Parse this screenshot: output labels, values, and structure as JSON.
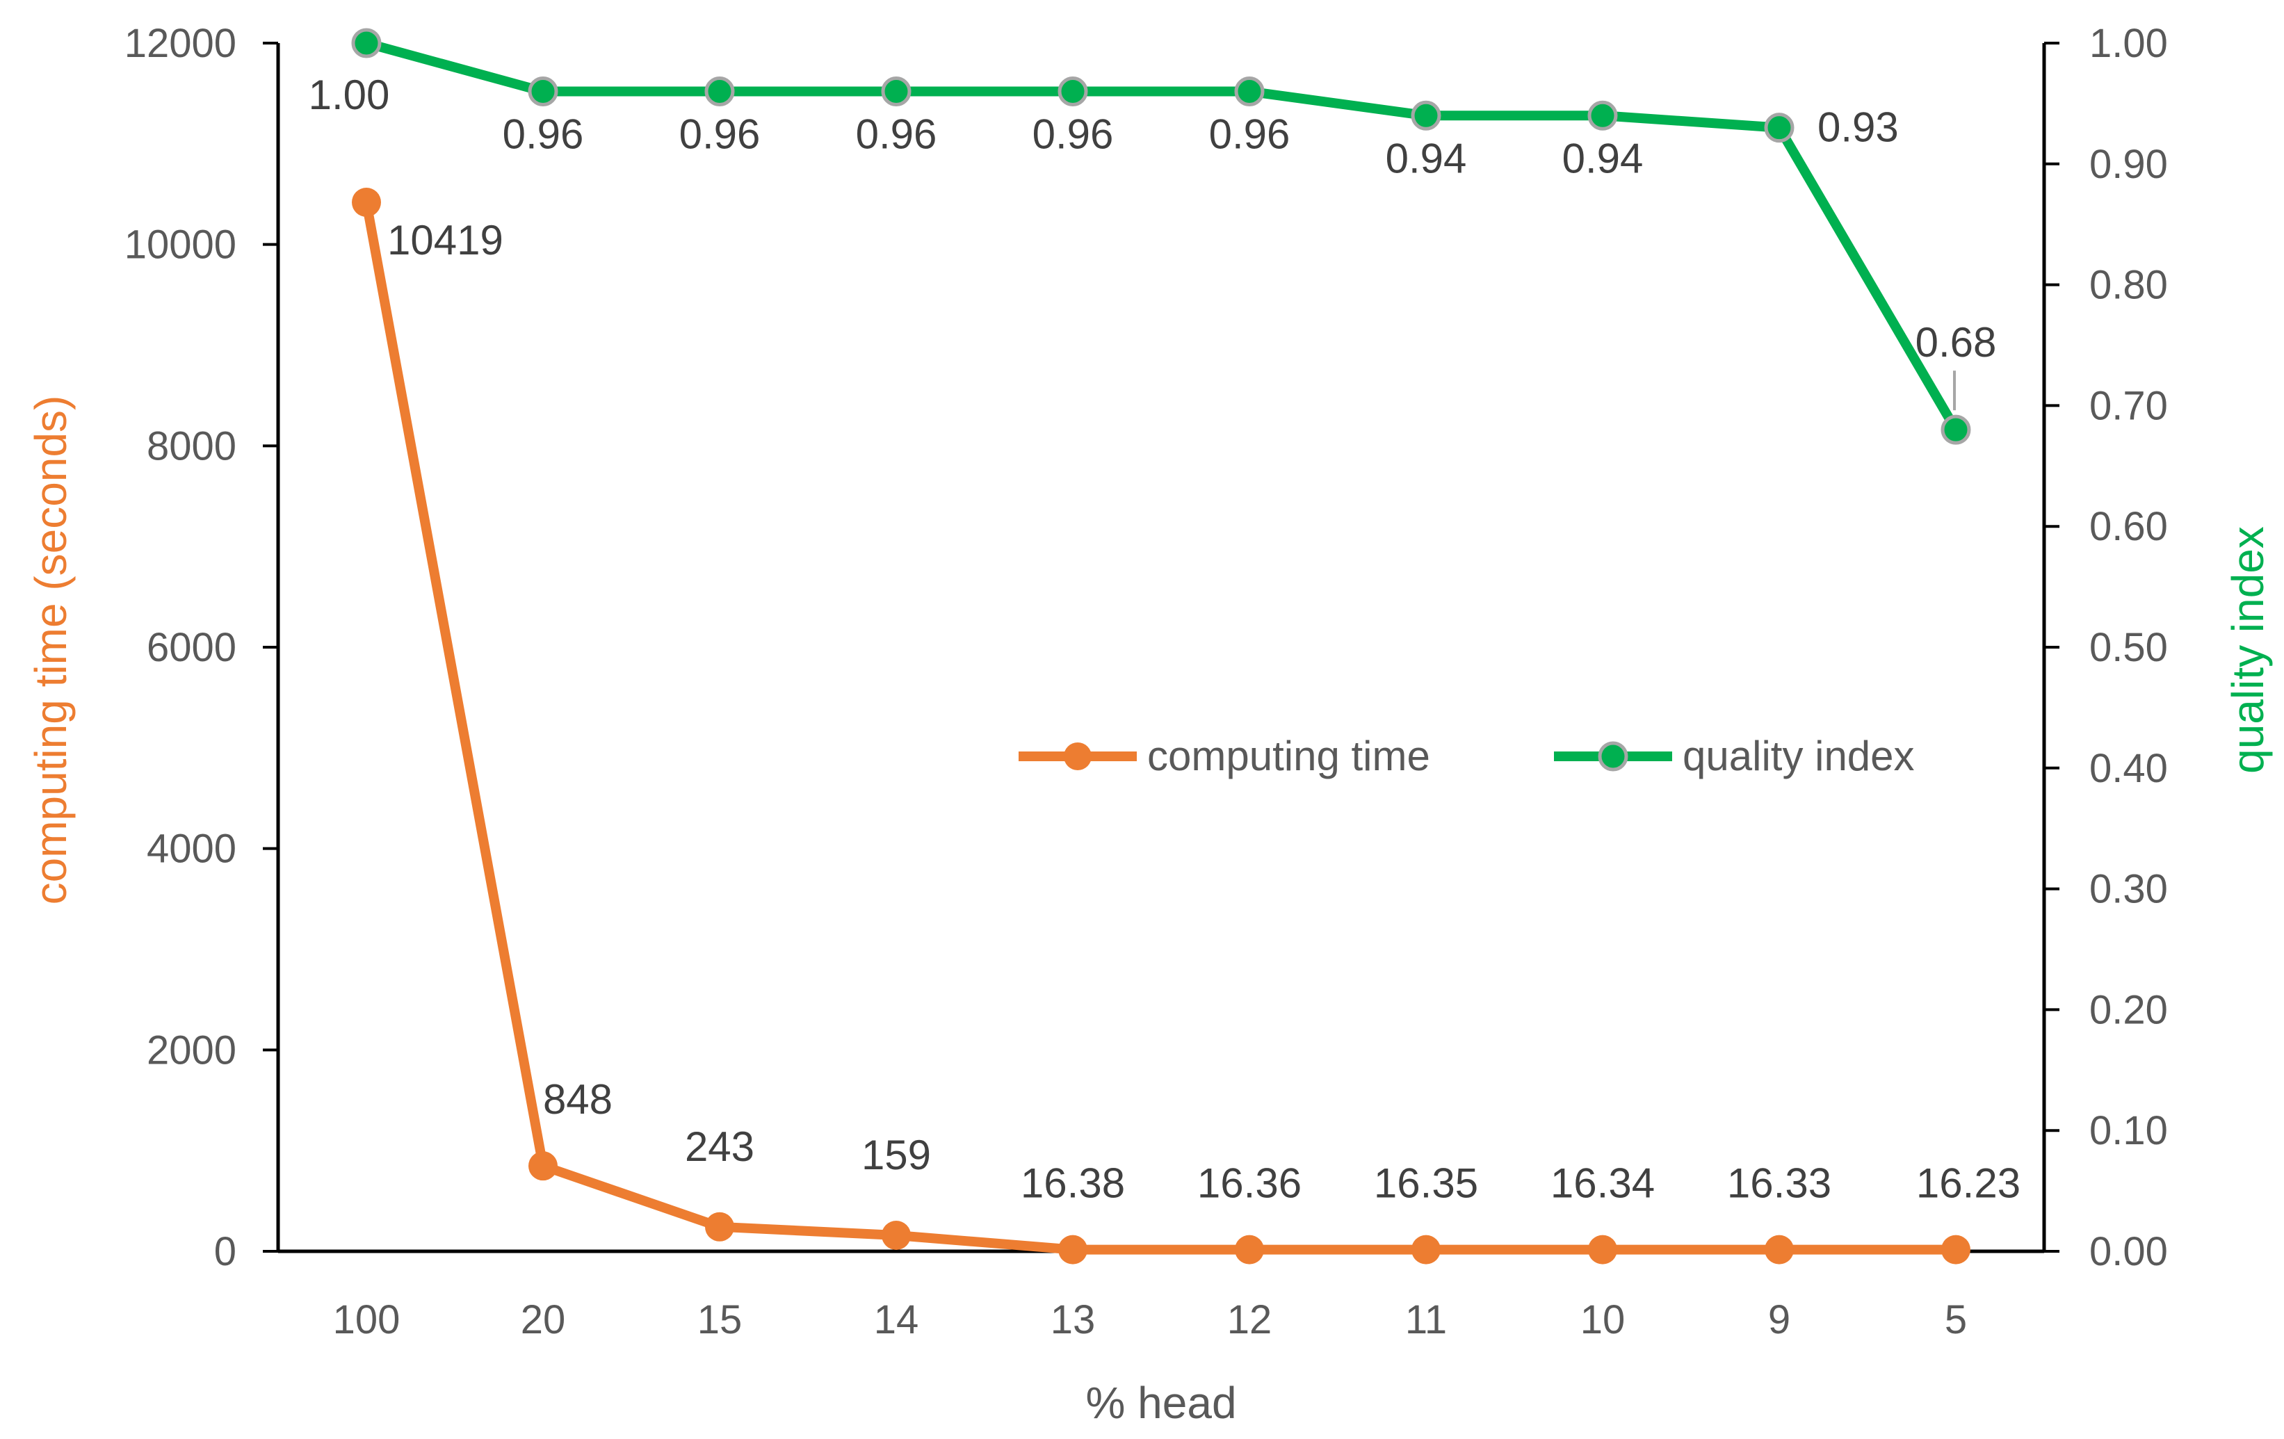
{
  "chart_data": {
    "type": "line",
    "categories": [
      "100",
      "20",
      "15",
      "14",
      "13",
      "12",
      "11",
      "10",
      "9",
      "5"
    ],
    "xlabel": "% head",
    "y_left": {
      "label": "computing time (seconds)",
      "ylim": [
        0,
        12000
      ],
      "ticks": [
        "0",
        "2000",
        "4000",
        "6000",
        "8000",
        "10000",
        "12000"
      ]
    },
    "y_right": {
      "label": "quality index",
      "ylim": [
        0,
        1
      ],
      "ticks": [
        "0.00",
        "0.10",
        "0.20",
        "0.30",
        "0.40",
        "0.50",
        "0.60",
        "0.70",
        "0.80",
        "0.90",
        "1.00"
      ]
    },
    "series": [
      {
        "name": "computing time",
        "axis": "left",
        "color": "#ED7D31",
        "values": [
          10419,
          848,
          243,
          159,
          16.38,
          16.36,
          16.35,
          16.34,
          16.33,
          16.23
        ],
        "labels": [
          "10419",
          "848",
          "243",
          "159",
          "16.38",
          "16.36",
          "16.35",
          "16.34",
          "16.33",
          "16.23"
        ]
      },
      {
        "name": "quality index",
        "axis": "right",
        "color": "#00B050",
        "values": [
          1.0,
          0.96,
          0.96,
          0.96,
          0.96,
          0.96,
          0.94,
          0.94,
          0.93,
          0.68
        ],
        "labels": [
          "1.00",
          "0.96",
          "0.96",
          "0.96",
          "0.96",
          "0.96",
          "0.94",
          "0.94",
          "0.93",
          "0.68"
        ]
      }
    ],
    "legend": "center-right",
    "grid": false
  }
}
